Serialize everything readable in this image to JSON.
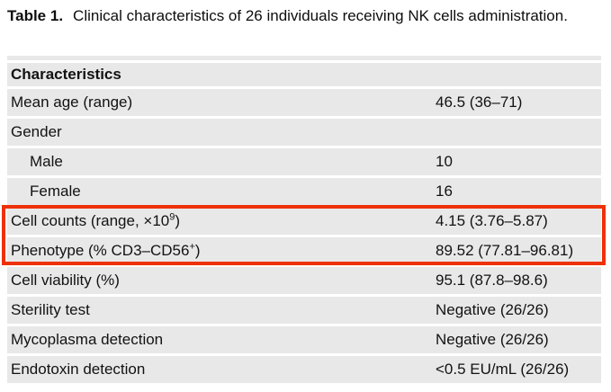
{
  "caption": {
    "label": "Table 1.",
    "text": "Clinical characteristics of 26 individuals receiving NK cells administration."
  },
  "table": {
    "header": "Characteristics",
    "rows": [
      {
        "label": "Mean age (range)",
        "value": "46.5 (36–71)"
      },
      {
        "label": "Gender",
        "value": ""
      },
      {
        "label": "Male",
        "value": "10",
        "indent": true
      },
      {
        "label": "Female",
        "value": "16",
        "indent": true
      },
      {
        "label_pre": "Cell counts (range, ×10",
        "label_sup": "9",
        "label_post": ")",
        "value": "4.15 (3.76–5.87)",
        "highlighted": true
      },
      {
        "label_pre": "Phenotype (% CD3–CD56",
        "label_sup": "+",
        "label_post": ")",
        "value": "89.52 (77.81–96.81)",
        "highlighted": true
      },
      {
        "label": "Cell viability (%)",
        "value": "95.1 (87.8–98.6)"
      },
      {
        "label": "Sterility test",
        "value": "Negative (26/26)"
      },
      {
        "label": "Mycoplasma detection",
        "value": "Negative (26/26)"
      },
      {
        "label": "Endotoxin detection",
        "value": "<0.5 EU/mL (26/26)"
      }
    ]
  },
  "theme": {
    "row_bg": "#e8e8e8",
    "highlight_color": "#ee3108",
    "text_color": "#121212"
  }
}
